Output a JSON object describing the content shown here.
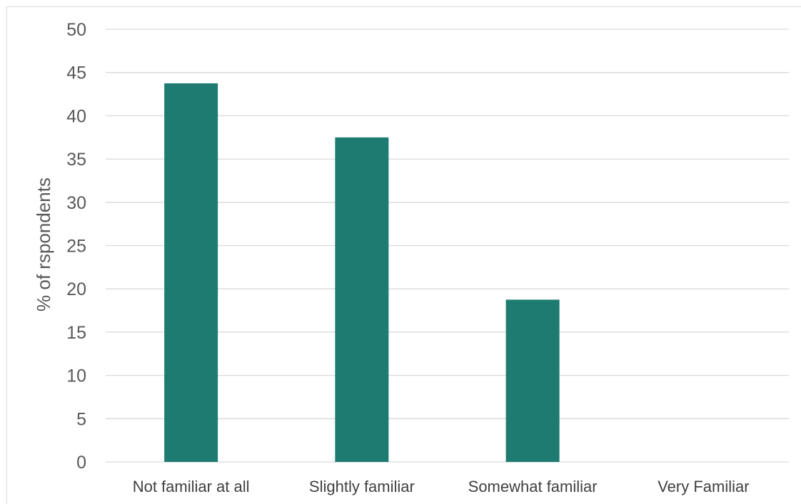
{
  "chart_data": {
    "type": "bar",
    "categories": [
      "Not familiar at all",
      "Slightly familiar",
      "Somewhat familiar",
      "Very Familiar"
    ],
    "values": [
      43.75,
      37.5,
      18.75,
      0
    ],
    "title": "",
    "xlabel": "",
    "ylabel": "% of rspondents",
    "ylim": [
      0,
      50
    ],
    "yticks": [
      0,
      5,
      10,
      15,
      20,
      25,
      30,
      35,
      40,
      45,
      50
    ],
    "grid": true,
    "legend": "none",
    "bar_color": "#1e7b72",
    "grid_color": "#d9d9d9"
  }
}
